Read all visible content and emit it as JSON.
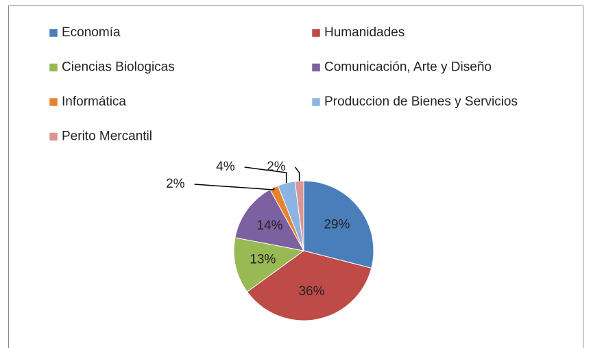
{
  "chart_data": {
    "type": "pie",
    "categories": [
      "Economía",
      "Humanidades",
      "Ciencias Biologicas",
      "Comunicación, Arte y Diseño",
      "Informática",
      "Produccion de Bienes y Servicios",
      "Perito Mercantil"
    ],
    "values": [
      29,
      36,
      13,
      14,
      2,
      4,
      2
    ],
    "value_labels": [
      "29%",
      "36%",
      "13%",
      "14%",
      "2%",
      "4%",
      "2%"
    ],
    "colors": [
      "#4a7ebb",
      "#be4b48",
      "#98b954",
      "#7d60a0",
      "#e8822f",
      "#8cb4e2",
      "#d99694"
    ],
    "legend": "top"
  }
}
